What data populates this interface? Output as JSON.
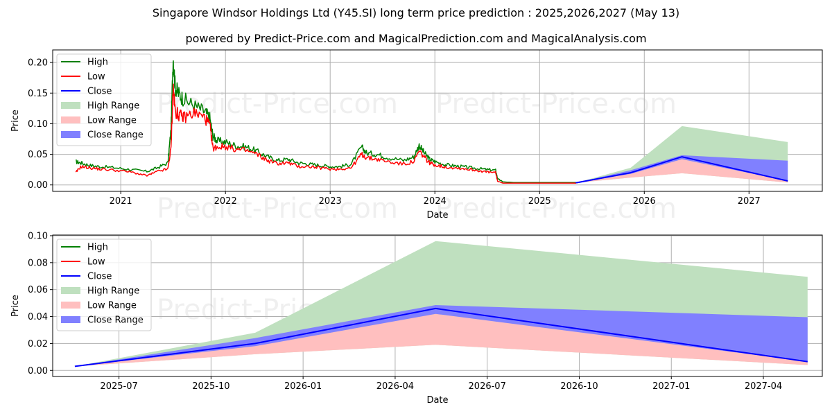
{
  "header": {
    "title": "Singapore Windsor Holdings Ltd (Y45.SI) long term price prediction : 2025,2026,2027 (May 13)",
    "subtitle": "powered by Predict-Price.com and MagicalPrediction.com and MagicalAnalysis.com"
  },
  "watermark": "Predict-Price.com",
  "legend": [
    "High",
    "Low",
    "Close",
    "High Range",
    "Low Range",
    "Close Range"
  ],
  "colors": {
    "high": "#008000",
    "low": "#ff0000",
    "close": "#0000ff",
    "high_range": "#bfe0bf",
    "low_range": "#ffbfbf",
    "close_range": "#8080ff",
    "grid": "#b0b0b0"
  },
  "chart_data": [
    {
      "type": "line",
      "name": "long-term",
      "xlabel": "Date",
      "ylabel": "Price",
      "xlim": [
        2020.35,
        2027.7
      ],
      "ylim": [
        -0.0105,
        0.2205
      ],
      "x_ticks": [
        2021,
        2022,
        2023,
        2024,
        2025,
        2026,
        2027
      ],
      "x_tick_labels": [
        "2021",
        "2022",
        "2023",
        "2024",
        "2025",
        "2026",
        "2027"
      ],
      "y_ticks": [
        0.0,
        0.05,
        0.1,
        0.15,
        0.2
      ],
      "y_tick_labels": [
        "0.00",
        "0.05",
        "0.10",
        "0.15",
        "0.20"
      ],
      "history": {
        "x": [
          2020.57,
          2020.62,
          2020.7,
          2020.8,
          2020.95,
          2021.1,
          2021.25,
          2021.35,
          2021.45,
          2021.48,
          2021.5,
          2021.52,
          2021.55,
          2021.6,
          2021.7,
          2021.8,
          2021.85,
          2021.88,
          2021.92,
          2022.0,
          2022.1,
          2022.2,
          2022.3,
          2022.4,
          2022.5,
          2022.6,
          2022.7,
          2022.8,
          2022.9,
          2023.0,
          2023.1,
          2023.2,
          2023.3,
          2023.35,
          2023.45,
          2023.55,
          2023.7,
          2023.8,
          2023.85,
          2023.9,
          2023.95,
          2024.0,
          2024.1,
          2024.2,
          2024.3,
          2024.4,
          2024.5,
          2024.58,
          2024.6,
          2024.65,
          2024.75,
          2024.9,
          2025.0,
          2025.1,
          2025.2,
          2025.35
        ],
        "high": [
          0.038,
          0.036,
          0.032,
          0.03,
          0.028,
          0.025,
          0.022,
          0.028,
          0.036,
          0.09,
          0.21,
          0.16,
          0.15,
          0.14,
          0.13,
          0.12,
          0.11,
          0.08,
          0.072,
          0.07,
          0.064,
          0.062,
          0.055,
          0.046,
          0.04,
          0.042,
          0.036,
          0.034,
          0.032,
          0.03,
          0.03,
          0.034,
          0.062,
          0.052,
          0.05,
          0.045,
          0.04,
          0.046,
          0.065,
          0.052,
          0.042,
          0.038,
          0.033,
          0.031,
          0.029,
          0.027,
          0.025,
          0.024,
          0.01,
          0.005,
          0.004,
          0.004,
          0.004,
          0.004,
          0.004,
          0.004
        ],
        "low": [
          0.02,
          0.03,
          0.028,
          0.026,
          0.024,
          0.021,
          0.015,
          0.022,
          0.026,
          0.06,
          0.16,
          0.12,
          0.115,
          0.11,
          0.118,
          0.11,
          0.098,
          0.06,
          0.062,
          0.063,
          0.058,
          0.056,
          0.05,
          0.04,
          0.035,
          0.036,
          0.03,
          0.03,
          0.028,
          0.026,
          0.026,
          0.028,
          0.05,
          0.044,
          0.042,
          0.038,
          0.034,
          0.038,
          0.055,
          0.045,
          0.036,
          0.033,
          0.029,
          0.028,
          0.026,
          0.024,
          0.021,
          0.02,
          0.006,
          0.003,
          0.003,
          0.003,
          0.003,
          0.003,
          0.003,
          0.003
        ]
      },
      "prediction": {
        "x": [
          2025.35,
          2025.87,
          2026.36,
          2027.37
        ],
        "close": [
          0.0035,
          0.02,
          0.046,
          0.0065
        ],
        "high_range": [
          [
            0.0035,
            0.0035
          ],
          [
            0.028,
            0.012
          ],
          [
            0.096,
            0.019
          ],
          [
            0.07,
            0.004
          ]
        ],
        "low_range": [
          [
            0.0035,
            0.0035
          ],
          [
            0.02,
            0.012
          ],
          [
            0.042,
            0.019
          ],
          [
            0.007,
            0.004
          ]
        ],
        "close_range": [
          [
            0.0035,
            0.0035
          ],
          [
            0.024,
            0.018
          ],
          [
            0.0485,
            0.042
          ],
          [
            0.0395,
            0.0065
          ]
        ]
      }
    },
    {
      "type": "area",
      "name": "prediction-zoom",
      "xlabel": "Date",
      "ylabel": "Price",
      "xlim": [
        2025.32,
        2027.41
      ],
      "ylim": [
        -0.0045,
        0.1005
      ],
      "x_ticks": [
        2025.5,
        2025.75,
        2026.0,
        2026.25,
        2026.5,
        2026.75,
        2027.0,
        2027.25
      ],
      "x_tick_labels": [
        "2025-07",
        "2025-10",
        "2026-01",
        "2026-04",
        "2026-07",
        "2026-10",
        "2027-01",
        "2027-04"
      ],
      "y_ticks": [
        0.0,
        0.02,
        0.04,
        0.06,
        0.08,
        0.1
      ],
      "y_tick_labels": [
        "0.00",
        "0.02",
        "0.04",
        "0.06",
        "0.08",
        "0.10"
      ],
      "prediction": {
        "x": [
          2025.38,
          2025.87,
          2026.36,
          2027.37
        ],
        "close": [
          0.003,
          0.02,
          0.046,
          0.0065
        ],
        "high_range": [
          [
            0.003,
            0.003
          ],
          [
            0.028,
            0.012
          ],
          [
            0.096,
            0.019
          ],
          [
            0.0695,
            0.004
          ]
        ],
        "low_range": [
          [
            0.003,
            0.003
          ],
          [
            0.02,
            0.012
          ],
          [
            0.042,
            0.019
          ],
          [
            0.007,
            0.004
          ]
        ],
        "close_range": [
          [
            0.003,
            0.003
          ],
          [
            0.024,
            0.018
          ],
          [
            0.0485,
            0.042
          ],
          [
            0.0395,
            0.0065
          ]
        ]
      }
    }
  ]
}
